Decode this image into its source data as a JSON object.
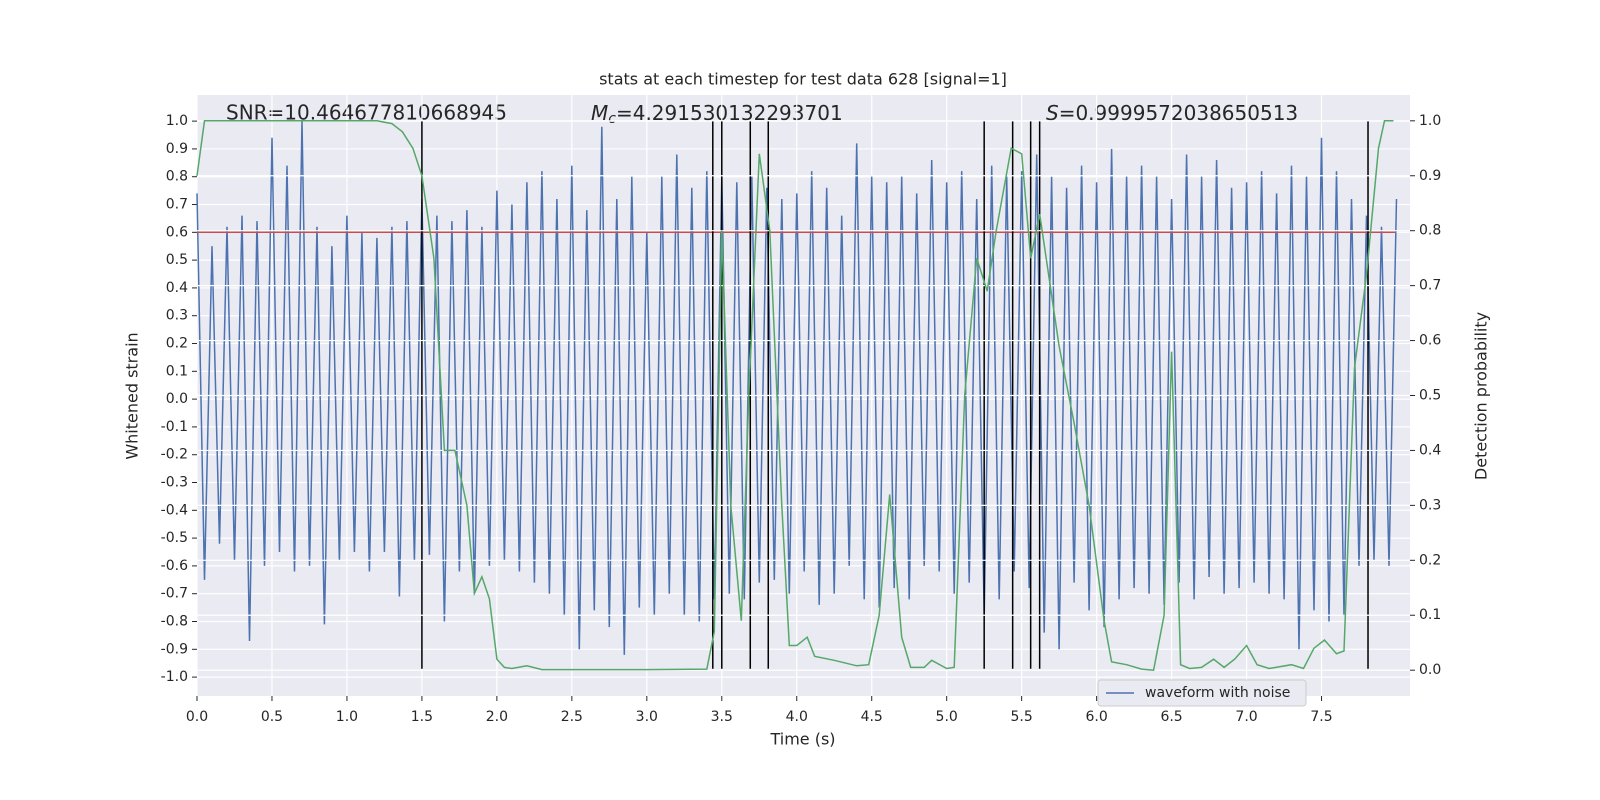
{
  "chart_data": {
    "type": "line",
    "title": "stats at each timestep for test data 628 [signal=1]",
    "xlabel": "Time (s)",
    "ylabel": "Whitened strain",
    "y2label": "Detection probability",
    "xlim": [
      0,
      8.09
    ],
    "ylim": [
      -1.068,
      1.094
    ],
    "y2lim": [
      -0.047,
      1.047
    ],
    "grid": true,
    "xticks": [
      {
        "value": 0,
        "label": "0.0"
      },
      {
        "value": 0.5,
        "label": "0.5"
      },
      {
        "value": 1,
        "label": "1.0"
      },
      {
        "value": 1.5,
        "label": "1.5"
      },
      {
        "value": 2,
        "label": "2.0"
      },
      {
        "value": 2.5,
        "label": "2.5"
      },
      {
        "value": 3,
        "label": "3.0"
      },
      {
        "value": 3.5,
        "label": "3.5"
      },
      {
        "value": 4,
        "label": "4.0"
      },
      {
        "value": 4.5,
        "label": "4.5"
      },
      {
        "value": 5,
        "label": "5.0"
      },
      {
        "value": 5.5,
        "label": "5.5"
      },
      {
        "value": 6,
        "label": "6.0"
      },
      {
        "value": 6.5,
        "label": "6.5"
      },
      {
        "value": 7,
        "label": "7.0"
      },
      {
        "value": 7.5,
        "label": "7.5"
      }
    ],
    "yticks": [
      {
        "value": -1,
        "label": "-1.0"
      },
      {
        "value": -0.9,
        "label": "-0.9"
      },
      {
        "value": -0.8,
        "label": "-0.8"
      },
      {
        "value": -0.7,
        "label": "-0.7"
      },
      {
        "value": -0.6,
        "label": "-0.6"
      },
      {
        "value": -0.5,
        "label": "-0.5"
      },
      {
        "value": -0.4,
        "label": "-0.4"
      },
      {
        "value": -0.3,
        "label": "-0.3"
      },
      {
        "value": -0.2,
        "label": "-0.2"
      },
      {
        "value": -0.1,
        "label": "-0.1"
      },
      {
        "value": 0,
        "label": "0.0"
      },
      {
        "value": 0.1,
        "label": "0.1"
      },
      {
        "value": 0.2,
        "label": "0.2"
      },
      {
        "value": 0.3,
        "label": "0.3"
      },
      {
        "value": 0.4,
        "label": "0.4"
      },
      {
        "value": 0.5,
        "label": "0.5"
      },
      {
        "value": 0.6,
        "label": "0.6"
      },
      {
        "value": 0.7,
        "label": "0.7"
      },
      {
        "value": 0.8,
        "label": "0.8"
      },
      {
        "value": 0.9,
        "label": "0.9"
      },
      {
        "value": 1,
        "label": "1.0"
      }
    ],
    "y2ticks": [
      {
        "value": 0,
        "label": "0.0"
      },
      {
        "value": 0.1,
        "label": "0.1"
      },
      {
        "value": 0.2,
        "label": "0.2"
      },
      {
        "value": 0.3,
        "label": "0.3"
      },
      {
        "value": 0.4,
        "label": "0.4"
      },
      {
        "value": 0.5,
        "label": "0.5"
      },
      {
        "value": 0.6,
        "label": "0.6"
      },
      {
        "value": 0.7,
        "label": "0.7"
      },
      {
        "value": 0.8,
        "label": "0.8"
      },
      {
        "value": 0.9,
        "label": "0.9"
      },
      {
        "value": 1,
        "label": "1.0"
      }
    ],
    "series": [
      {
        "name": "waveform with noise",
        "color": "#4c72b0",
        "step": 0.05,
        "values": [
          0.74,
          -0.65,
          0.55,
          -0.52,
          0.62,
          -0.58,
          0.66,
          -0.87,
          0.64,
          -0.6,
          0.94,
          -0.55,
          0.84,
          -0.62,
          1.0,
          -0.6,
          0.62,
          -0.81,
          0.55,
          -0.58,
          0.66,
          -0.55,
          0.6,
          -0.62,
          0.58,
          -0.55,
          0.62,
          -0.71,
          0.64,
          -0.58,
          0.72,
          -0.56,
          0.66,
          -0.8,
          0.64,
          -0.62,
          0.68,
          -0.7,
          0.62,
          -0.6,
          0.75,
          -0.58,
          0.7,
          -0.62,
          0.78,
          -0.66,
          0.82,
          -0.7,
          0.72,
          -0.78,
          0.84,
          -0.9,
          0.68,
          -0.76,
          0.98,
          -0.82,
          0.72,
          -0.92,
          0.8,
          -0.75,
          0.6,
          -0.78,
          0.8,
          -0.7,
          0.88,
          -0.78,
          0.76,
          -0.8,
          0.82,
          -0.72,
          0.8,
          -0.7,
          0.78,
          -0.72,
          0.8,
          -0.66,
          0.76,
          -0.65,
          0.72,
          -0.7,
          0.74,
          -0.62,
          0.82,
          -0.74,
          0.76,
          -0.7,
          0.66,
          -0.6,
          0.92,
          -0.72,
          0.8,
          -0.75,
          0.78,
          -0.68,
          0.8,
          -0.72,
          0.74,
          -0.6,
          0.86,
          -0.62,
          0.78,
          -0.7,
          0.82,
          -0.66,
          0.72,
          -0.78,
          0.84,
          -0.72,
          0.8,
          -0.62,
          0.82,
          -0.68,
          0.88,
          -0.84,
          0.8,
          -0.9,
          0.76,
          -0.66,
          0.84,
          -0.76,
          0.78,
          -0.82,
          0.9,
          -0.72,
          0.8,
          -0.68,
          0.84,
          -0.7,
          0.8,
          -0.74,
          0.72,
          -0.66,
          0.88,
          -0.72,
          0.8,
          -0.64,
          0.86,
          -0.7,
          0.76,
          -0.68,
          0.78,
          -0.66,
          0.82,
          -0.7,
          0.74,
          -0.72,
          0.84,
          -0.9,
          0.8,
          -0.76,
          0.94,
          -0.8,
          0.82,
          -0.78,
          0.72,
          -0.6,
          0.66,
          -0.58,
          0.62,
          -0.6,
          0.72
        ]
      },
      {
        "color": "#55a868",
        "axis": "y2",
        "x": [
          0,
          0.05,
          0.3,
          0.6,
          0.9,
          1.2,
          1.3,
          1.37,
          1.44,
          1.5,
          1.58,
          1.65,
          1.72,
          1.8,
          1.85,
          1.9,
          1.95,
          2.0,
          2.05,
          2.1,
          2.2,
          2.3,
          3.0,
          3.4,
          3.45,
          3.5,
          3.56,
          3.63,
          3.68,
          3.75,
          3.82,
          3.9,
          3.95,
          4.0,
          4.07,
          4.12,
          4.25,
          4.4,
          4.48,
          4.55,
          4.62,
          4.7,
          4.76,
          4.85,
          4.9,
          5.0,
          5.05,
          5.12,
          5.2,
          5.27,
          5.33,
          5.43,
          5.5,
          5.56,
          5.62,
          5.68,
          5.75,
          5.85,
          5.95,
          6.05,
          6.1,
          6.2,
          6.3,
          6.38,
          6.45,
          6.5,
          6.56,
          6.62,
          6.7,
          6.78,
          6.85,
          6.92,
          7.0,
          7.07,
          7.15,
          7.3,
          7.38,
          7.45,
          7.52,
          7.6,
          7.65,
          7.72,
          7.8,
          7.88,
          7.92,
          7.98
        ],
        "values": [
          0.9,
          1.0,
          1.0,
          1.0,
          1.0,
          1.0,
          0.995,
          0.98,
          0.95,
          0.9,
          0.75,
          0.4,
          0.4,
          0.3,
          0.14,
          0.17,
          0.13,
          0.02,
          0.005,
          0.003,
          0.008,
          0.001,
          0.001,
          0.002,
          0.07,
          0.8,
          0.3,
          0.09,
          0.5,
          0.94,
          0.8,
          0.3,
          0.045,
          0.045,
          0.06,
          0.025,
          0.018,
          0.008,
          0.01,
          0.1,
          0.32,
          0.06,
          0.005,
          0.005,
          0.018,
          0.003,
          0.005,
          0.5,
          0.75,
          0.69,
          0.8,
          0.95,
          0.94,
          0.75,
          0.83,
          0.72,
          0.59,
          0.45,
          0.3,
          0.09,
          0.015,
          0.01,
          0.002,
          0,
          0.1,
          0.58,
          0.01,
          0.003,
          0.005,
          0.02,
          0.005,
          0.02,
          0.045,
          0.01,
          0.003,
          0.01,
          0.003,
          0.04,
          0.055,
          0.03,
          0.035,
          0.55,
          0.72,
          0.95,
          1.0,
          1.0
        ]
      },
      {
        "color": "#c44e52",
        "x": [
          0,
          7.99
        ],
        "values": [
          0.6,
          0.6
        ]
      }
    ],
    "vlines": {
      "color": "#000000",
      "x": [
        1.5,
        3.44,
        3.5,
        3.69,
        3.81,
        5.25,
        5.44,
        5.56,
        5.62,
        7.81
      ],
      "ymin": -0.97,
      "ymax": 1.0
    },
    "annotations": [
      {
        "text": "SNR=10.464677810668945"
      },
      {
        "symbol": "M",
        "subscript": "c",
        "text": "=4.291530132293701"
      },
      {
        "symbol": "S",
        "text": "=0.9999572038650513"
      }
    ],
    "legend": "lower right"
  }
}
